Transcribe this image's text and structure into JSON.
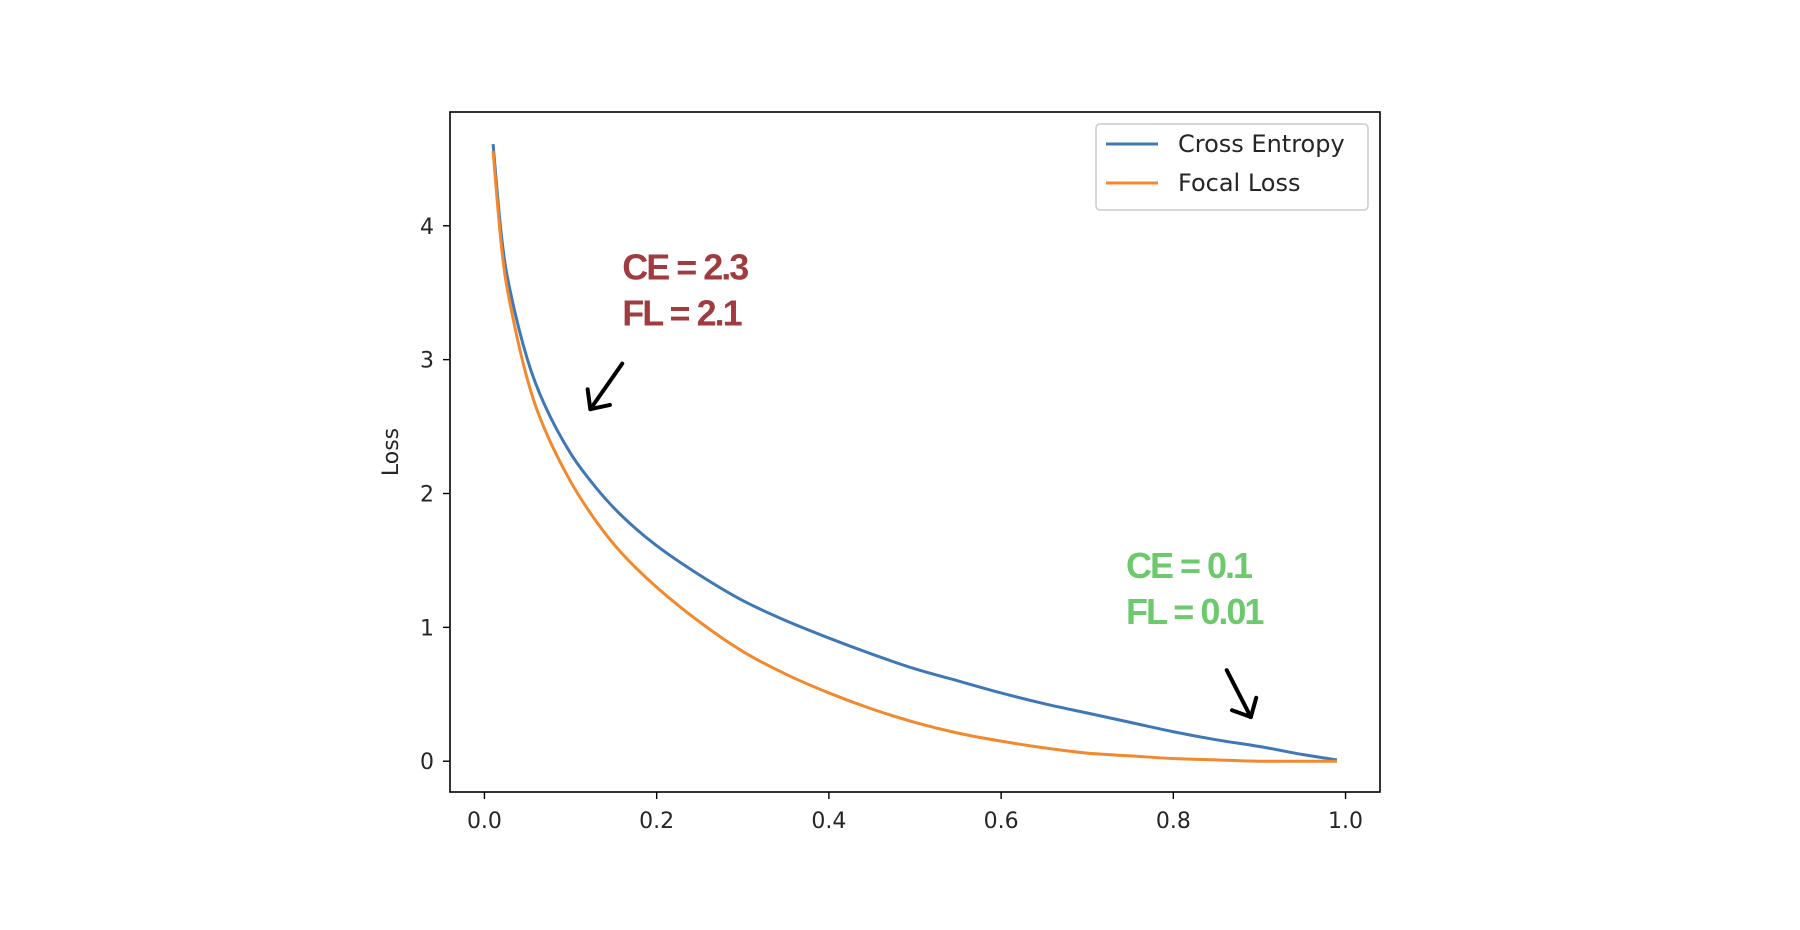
{
  "chart_data": {
    "type": "line",
    "title": "",
    "xlabel": "",
    "ylabel": "Loss",
    "xlim": [
      -0.04,
      1.04
    ],
    "ylim": [
      -0.23,
      4.85
    ],
    "x_ticks": [
      0.0,
      0.2,
      0.4,
      0.6,
      0.8,
      1.0
    ],
    "x_tick_labels": [
      "0.0",
      "0.2",
      "0.4",
      "0.6",
      "0.8",
      "1.0"
    ],
    "y_ticks": [
      0,
      1,
      2,
      3,
      4
    ],
    "y_tick_labels": [
      "0",
      "1",
      "2",
      "3",
      "4"
    ],
    "grid": false,
    "legend_position": "top-right",
    "series": [
      {
        "name": "Cross Entropy",
        "color": "#3f78b5",
        "x": [
          0.01,
          0.02,
          0.03,
          0.05,
          0.07,
          0.1,
          0.13,
          0.16,
          0.2,
          0.25,
          0.3,
          0.35,
          0.4,
          0.45,
          0.5,
          0.55,
          0.6,
          0.65,
          0.7,
          0.75,
          0.8,
          0.85,
          0.9,
          0.95,
          0.99
        ],
        "values": [
          4.61,
          3.91,
          3.51,
          3.0,
          2.66,
          2.3,
          2.04,
          1.83,
          1.61,
          1.39,
          1.2,
          1.05,
          0.92,
          0.8,
          0.69,
          0.6,
          0.51,
          0.43,
          0.36,
          0.29,
          0.22,
          0.16,
          0.11,
          0.05,
          0.01
        ]
      },
      {
        "name": "Focal Loss",
        "color": "#f2892e",
        "x": [
          0.01,
          0.02,
          0.03,
          0.05,
          0.07,
          0.1,
          0.13,
          0.16,
          0.2,
          0.25,
          0.3,
          0.35,
          0.4,
          0.45,
          0.5,
          0.55,
          0.6,
          0.65,
          0.7,
          0.75,
          0.8,
          0.85,
          0.9,
          0.95,
          0.99
        ],
        "values": [
          4.56,
          3.83,
          3.41,
          2.85,
          2.48,
          2.09,
          1.79,
          1.55,
          1.3,
          1.04,
          0.82,
          0.65,
          0.51,
          0.39,
          0.29,
          0.21,
          0.15,
          0.1,
          0.06,
          0.04,
          0.02,
          0.01,
          0.0,
          0.0,
          0.0
        ]
      }
    ],
    "annotations": [
      {
        "lines": [
          "CE = 2.3",
          "FL = 2.1"
        ],
        "color": "#a03b3f",
        "text_at": [
          0.16,
          3.6
        ],
        "arrow_from": [
          0.16,
          2.97
        ],
        "arrow_to": [
          0.123,
          2.63
        ]
      },
      {
        "lines": [
          "CE = 0.1",
          "FL = 0.01"
        ],
        "color": "#6cc96c",
        "text_at": [
          0.745,
          1.37
        ],
        "arrow_from": [
          0.862,
          0.68
        ],
        "arrow_to": [
          0.89,
          0.33
        ]
      }
    ]
  }
}
